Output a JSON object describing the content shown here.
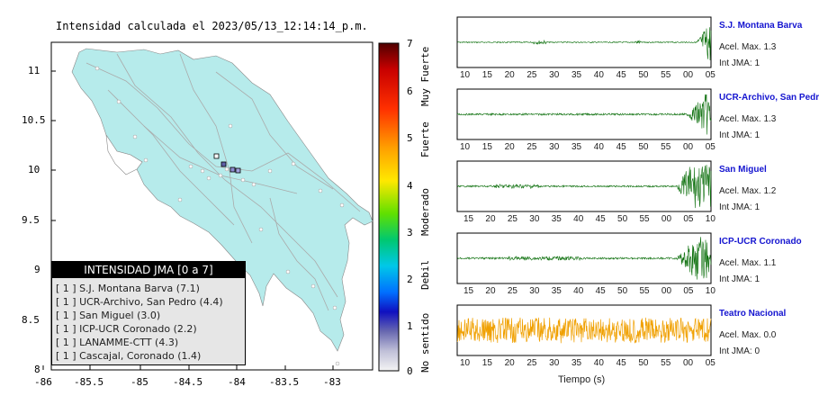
{
  "title": "Intensidad calculada el 2023/05/13_12:14:14_p.m.",
  "map": {
    "y_ticks": [
      "11",
      "10.5",
      "10",
      "9.5",
      "9",
      "8.5",
      "8"
    ],
    "x_ticks": [
      "-86",
      "-85.5",
      "-85",
      "-84.5",
      "-84",
      "-83.5",
      "-83"
    ]
  },
  "legend": {
    "header": "INTENSIDAD JMA [0 a 7]",
    "rows": [
      "[ 1 ]  S.J. Montana Barva (7.1)",
      "[ 1 ]  UCR-Archivo, San Pedro (4.4)",
      "[ 1 ]  San Miguel (3.0)",
      "[ 1 ]  ICP-UCR Coronado (2.2)",
      "[ 1 ]  LANAMME-CTT (4.3)",
      "[ 1 ]  Cascajal, Coronado (1.4)"
    ]
  },
  "colorbar": {
    "ticks": [
      "7",
      "6",
      "5",
      "4",
      "3",
      "2",
      "1",
      "0"
    ],
    "labels": [
      "Muy Fuerte",
      "Fuerte",
      "Moderado",
      "Debil",
      "No sentido"
    ]
  },
  "stations": [
    {
      "name": "S.J. Montana Barva",
      "acel": "Acel. Max. 1.3",
      "jma": "Int JMA: 1",
      "color": "#0a6e0a",
      "ticks": [
        "10",
        "15",
        "20",
        "25",
        "30",
        "35",
        "40",
        "45",
        "50",
        "55",
        "00",
        "05"
      ]
    },
    {
      "name": "UCR-Archivo, San Pedro",
      "acel": "Acel. Max. 1.3",
      "jma": "Int JMA: 1",
      "color": "#0a6e0a",
      "ticks": [
        "10",
        "15",
        "20",
        "25",
        "30",
        "35",
        "40",
        "45",
        "50",
        "55",
        "00",
        "05"
      ]
    },
    {
      "name": "San Miguel",
      "acel": "Acel. Max. 1.2",
      "jma": "Int JMA: 1",
      "color": "#0a6e0a",
      "ticks": [
        "15",
        "20",
        "25",
        "30",
        "35",
        "40",
        "45",
        "50",
        "55",
        "00",
        "05",
        "10"
      ]
    },
    {
      "name": "ICP-UCR Coronado",
      "acel": "Acel. Max. 1.1",
      "jma": "Int JMA: 1",
      "color": "#0a6e0a",
      "ticks": [
        "15",
        "20",
        "25",
        "30",
        "35",
        "40",
        "45",
        "50",
        "55",
        "00",
        "05",
        "10"
      ]
    },
    {
      "name": "Teatro Nacional",
      "acel": "Acel. Max. 0.0",
      "jma": "Int JMA: 0",
      "color": "#f0a000",
      "ticks": [
        "10",
        "15",
        "20",
        "25",
        "30",
        "35",
        "40",
        "45",
        "50",
        "55",
        "00",
        "05"
      ]
    }
  ],
  "xlabel": "Tiempo (s)"
}
